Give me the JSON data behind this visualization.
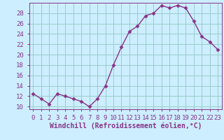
{
  "x": [
    0,
    1,
    2,
    3,
    4,
    5,
    6,
    7,
    8,
    9,
    10,
    11,
    12,
    13,
    14,
    15,
    16,
    17,
    18,
    19,
    20,
    21,
    22,
    23
  ],
  "y": [
    12.5,
    11.5,
    10.5,
    12.5,
    12.0,
    11.5,
    11.0,
    10.0,
    11.5,
    14.0,
    18.0,
    21.5,
    24.5,
    25.5,
    27.5,
    28.0,
    29.5,
    29.0,
    29.5,
    29.0,
    26.5,
    23.5,
    22.5,
    21.0
  ],
  "line_color": "#883388",
  "marker": "D",
  "marker_size": 2.5,
  "bg_color": "#cceeff",
  "grid_color": "#99cccc",
  "tick_color": "#883388",
  "label_color": "#883388",
  "xlabel": "Windchill (Refroidissement éolien,°C)",
  "xlim": [
    -0.5,
    23.5
  ],
  "ylim": [
    9.5,
    30.0
  ],
  "yticks": [
    10,
    12,
    14,
    16,
    18,
    20,
    22,
    24,
    26,
    28
  ],
  "xticks": [
    0,
    1,
    2,
    3,
    4,
    5,
    6,
    7,
    8,
    9,
    10,
    11,
    12,
    13,
    14,
    15,
    16,
    17,
    18,
    19,
    20,
    21,
    22,
    23
  ],
  "xtick_labels": [
    "0",
    "1",
    "2",
    "3",
    "4",
    "5",
    "6",
    "7",
    "8",
    "9",
    "10",
    "11",
    "12",
    "13",
    "14",
    "15",
    "16",
    "17",
    "18",
    "19",
    "20",
    "21",
    "22",
    "23"
  ],
  "line_width": 1.0,
  "font_size": 6.5,
  "xlabel_font_size": 7.0
}
